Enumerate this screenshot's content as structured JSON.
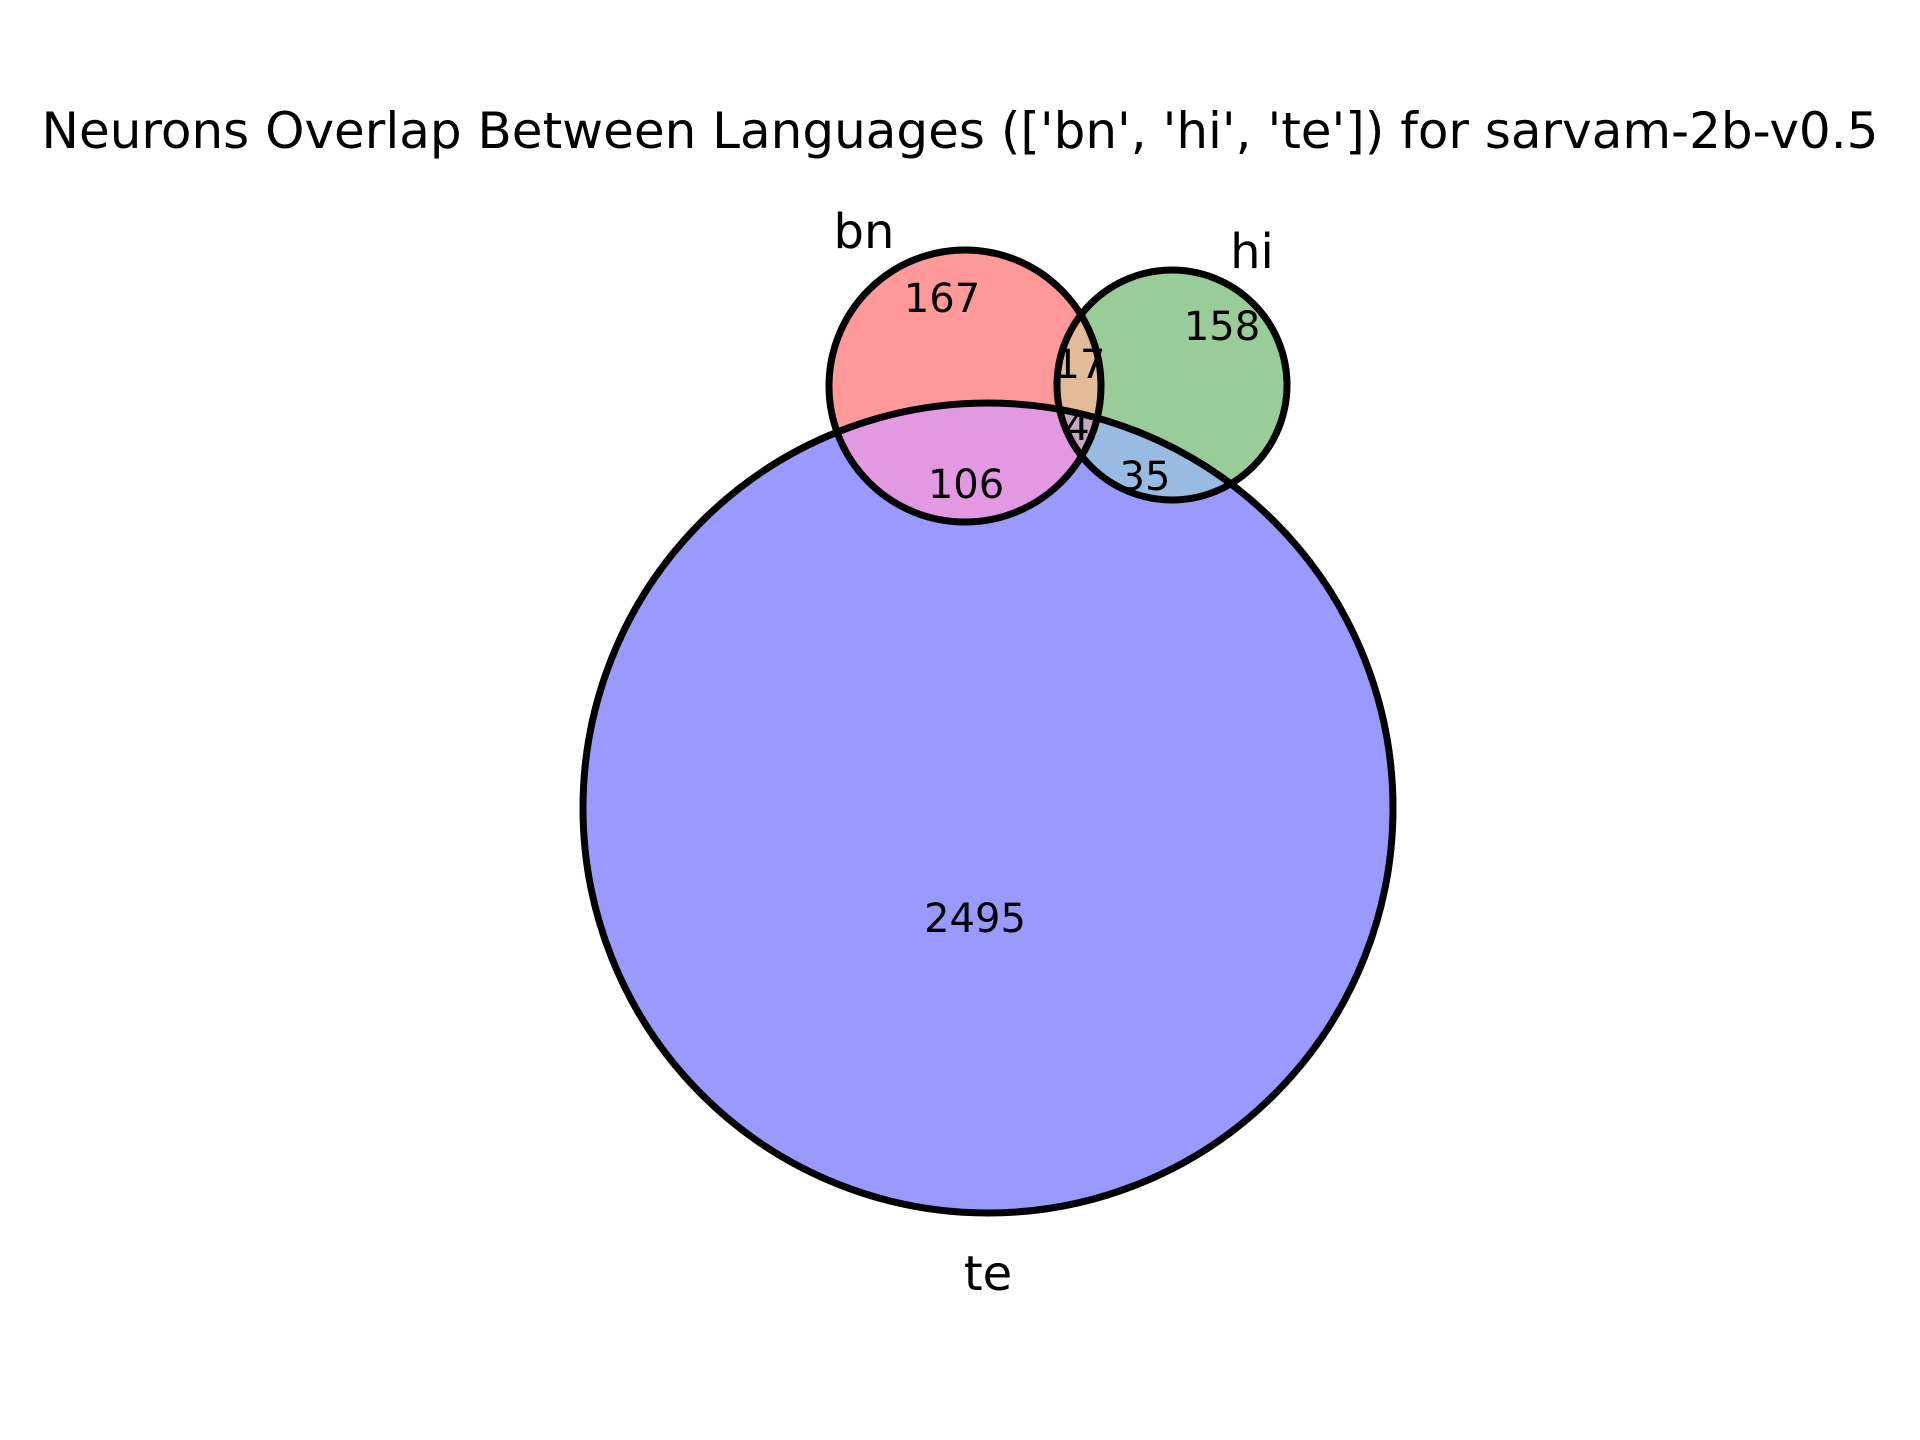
{
  "chart_data": {
    "type": "venn",
    "title": "Neurons Overlap Between Languages (['bn', 'hi', 'te']) for sarvam-2b-v0.5",
    "sets": [
      {
        "key": "bn",
        "label": "bn",
        "color": "#ff9999"
      },
      {
        "key": "hi",
        "label": "hi",
        "color": "#99cc99"
      },
      {
        "key": "te",
        "label": "te",
        "color": "#9999ff"
      }
    ],
    "regions": [
      {
        "key": "bn_only",
        "sets": [
          "bn"
        ],
        "value": "167",
        "color": "#ff9999"
      },
      {
        "key": "hi_only",
        "sets": [
          "hi"
        ],
        "value": "158",
        "color": "#99cc99"
      },
      {
        "key": "te_only",
        "sets": [
          "te"
        ],
        "value": "2495",
        "color": "#9999ff"
      },
      {
        "key": "bn_hi",
        "sets": [
          "bn",
          "hi"
        ],
        "value": "17",
        "color": "#e2bb99"
      },
      {
        "key": "bn_te",
        "sets": [
          "bn",
          "te"
        ],
        "value": "106",
        "color": "#e299e2"
      },
      {
        "key": "hi_te",
        "sets": [
          "hi",
          "te"
        ],
        "value": "35",
        "color": "#99bbe2"
      },
      {
        "key": "bn_hi_te",
        "sets": [
          "bn",
          "hi",
          "te"
        ],
        "value": "4",
        "color": "#c8a8c0"
      }
    ]
  }
}
